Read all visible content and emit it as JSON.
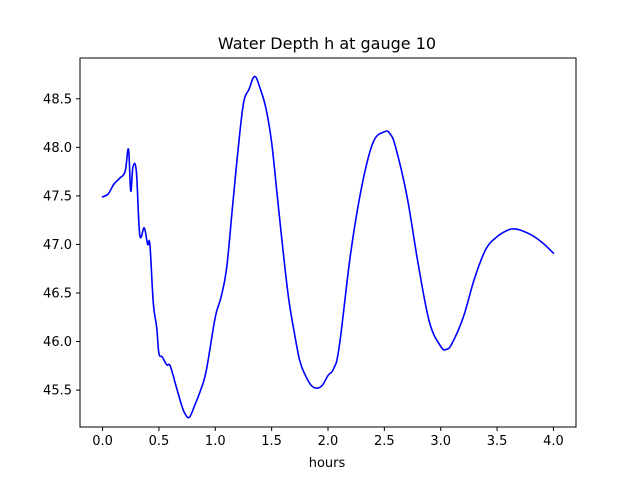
{
  "chart_data": {
    "type": "line",
    "title": "Water Depth h at gauge 10",
    "xlabel": "hours",
    "ylabel": "",
    "xlim": [
      -0.2,
      4.2
    ],
    "ylim": [
      45.12,
      48.92
    ],
    "grid": false,
    "legend": "none",
    "x_ticks": [
      0.0,
      0.5,
      1.0,
      1.5,
      2.0,
      2.5,
      3.0,
      3.5,
      4.0
    ],
    "x_tick_labels": [
      "0.0",
      "0.5",
      "1.0",
      "1.5",
      "2.0",
      "2.5",
      "3.0",
      "3.5",
      "4.0"
    ],
    "y_ticks": [
      45.5,
      46.0,
      46.5,
      47.0,
      47.5,
      48.0,
      48.5
    ],
    "y_tick_labels": [
      "45.5",
      "46.0",
      "46.5",
      "47.0",
      "47.5",
      "48.0",
      "48.5"
    ],
    "series": [
      {
        "name": "",
        "color": "#0000ff",
        "x": [
          0.0,
          0.05,
          0.1,
          0.15,
          0.2,
          0.23,
          0.25,
          0.27,
          0.3,
          0.33,
          0.37,
          0.4,
          0.42,
          0.45,
          0.48,
          0.5,
          0.53,
          0.57,
          0.6,
          0.65,
          0.7,
          0.73,
          0.77,
          0.82,
          0.87,
          0.92,
          1.0,
          1.05,
          1.1,
          1.15,
          1.2,
          1.25,
          1.3,
          1.35,
          1.4,
          1.45,
          1.5,
          1.55,
          1.6,
          1.65,
          1.7,
          1.75,
          1.8,
          1.85,
          1.9,
          1.95,
          2.0,
          2.05,
          2.1,
          2.2,
          2.3,
          2.4,
          2.5,
          2.55,
          2.6,
          2.7,
          2.8,
          2.9,
          3.0,
          3.05,
          3.1,
          3.2,
          3.3,
          3.4,
          3.5,
          3.6,
          3.65,
          3.7,
          3.8,
          3.9,
          4.0
        ],
        "y": [
          47.49,
          47.52,
          47.62,
          47.68,
          47.75,
          47.98,
          47.55,
          47.8,
          47.75,
          47.1,
          47.17,
          47.0,
          47.0,
          46.4,
          46.15,
          45.88,
          45.84,
          45.76,
          45.75,
          45.55,
          45.35,
          45.26,
          45.22,
          45.35,
          45.5,
          45.7,
          46.25,
          46.45,
          46.75,
          47.35,
          47.95,
          48.45,
          48.6,
          48.73,
          48.6,
          48.4,
          48.05,
          47.5,
          46.95,
          46.45,
          46.1,
          45.8,
          45.65,
          45.55,
          45.52,
          45.55,
          45.65,
          45.72,
          45.95,
          46.9,
          47.6,
          48.05,
          48.16,
          48.14,
          48.0,
          47.5,
          46.8,
          46.2,
          45.95,
          45.92,
          45.98,
          46.25,
          46.65,
          46.95,
          47.08,
          47.15,
          47.16,
          47.15,
          47.1,
          47.02,
          46.91
        ]
      }
    ]
  }
}
